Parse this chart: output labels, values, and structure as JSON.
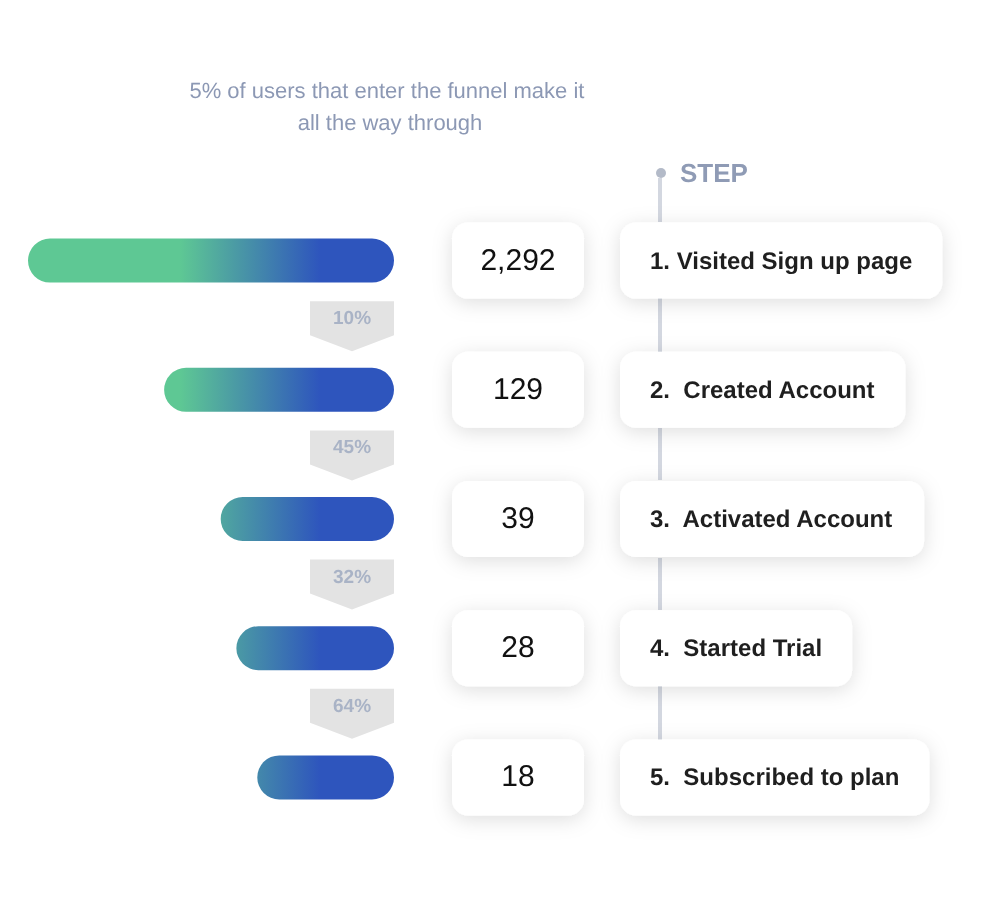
{
  "chart_data": {
    "type": "other",
    "title": "5% of users that enter the funnel make it all the way through",
    "ylabel": "STEP",
    "categories": [
      "1. Visited Sign up page",
      "2.  Created Account",
      "3.  Activated Account",
      "4.  Started Trial",
      "5.  Subscribed to plan"
    ],
    "values": [
      2292,
      129,
      39,
      28,
      18
    ],
    "value_labels": [
      "2,292",
      "129",
      "39",
      "28",
      "18"
    ],
    "color": "#2e55bd",
    "annotations": [
      "10%",
      "45%",
      "32%",
      "64%"
    ]
  }
}
